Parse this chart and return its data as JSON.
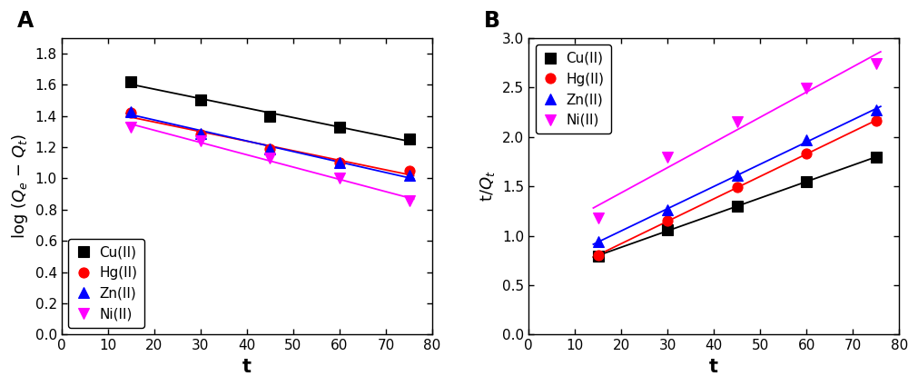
{
  "panel_A": {
    "title": "A",
    "xlabel": "t",
    "ylabel_line1": "log (Q",
    "ylabel": "log (Q_e - Q_t)",
    "xlim": [
      0,
      80
    ],
    "ylim": [
      0.0,
      1.9
    ],
    "yticks": [
      0.0,
      0.2,
      0.4,
      0.6,
      0.8,
      1.0,
      1.2,
      1.4,
      1.6,
      1.8
    ],
    "xticks": [
      0,
      10,
      20,
      30,
      40,
      50,
      60,
      70,
      80
    ],
    "legend_loc": "lower left",
    "series": [
      {
        "label": "Cu(II)",
        "color": "#000000",
        "marker": "s",
        "x": [
          15,
          30,
          45,
          60,
          75
        ],
        "y": [
          1.62,
          1.5,
          1.4,
          1.33,
          1.25
        ]
      },
      {
        "label": "Hg(II)",
        "color": "#ff0000",
        "marker": "o",
        "x": [
          15,
          30,
          45,
          60,
          75
        ],
        "y": [
          1.42,
          1.28,
          1.19,
          1.1,
          1.05
        ]
      },
      {
        "label": "Zn(II)",
        "color": "#0000ff",
        "marker": "^",
        "x": [
          15,
          30,
          45,
          60,
          75
        ],
        "y": [
          1.43,
          1.29,
          1.19,
          1.1,
          1.02
        ]
      },
      {
        "label": "Ni(II)",
        "color": "#ff00ff",
        "marker": "v",
        "x": [
          15,
          30,
          45,
          60,
          75
        ],
        "y": [
          1.33,
          1.24,
          1.13,
          1.0,
          0.86
        ]
      }
    ]
  },
  "panel_B": {
    "title": "B",
    "xlabel": "t",
    "ylabel": "t/Q_t",
    "xlim": [
      0,
      80
    ],
    "ylim": [
      0.0,
      3.0
    ],
    "yticks": [
      0.0,
      0.5,
      1.0,
      1.5,
      2.0,
      2.5,
      3.0
    ],
    "xticks": [
      0,
      10,
      20,
      30,
      40,
      50,
      60,
      70,
      80
    ],
    "legend_loc": "upper left",
    "series": [
      {
        "label": "Cu(II)",
        "color": "#000000",
        "marker": "s",
        "x": [
          15,
          30,
          45,
          60,
          75
        ],
        "y": [
          0.79,
          1.06,
          1.3,
          1.55,
          1.79
        ]
      },
      {
        "label": "Hg(II)",
        "color": "#ff0000",
        "marker": "o",
        "x": [
          15,
          30,
          45,
          60,
          75
        ],
        "y": [
          0.8,
          1.15,
          1.49,
          1.83,
          2.16
        ]
      },
      {
        "label": "Zn(II)",
        "color": "#0000ff",
        "marker": "^",
        "x": [
          15,
          30,
          45,
          60,
          75
        ],
        "y": [
          0.94,
          1.26,
          1.61,
          1.97,
          2.27
        ]
      },
      {
        "label": "Ni(II)",
        "color": "#ff00ff",
        "marker": "v",
        "x": [
          15,
          30,
          45,
          60,
          75
        ],
        "y": [
          1.18,
          1.79,
          2.15,
          2.49,
          2.74
        ]
      }
    ]
  },
  "marker_size": 8,
  "line_width": 1.3,
  "font_size_label": 13,
  "font_size_title": 15,
  "font_size_tick": 11,
  "font_size_legend": 11,
  "background_color": "#ffffff"
}
